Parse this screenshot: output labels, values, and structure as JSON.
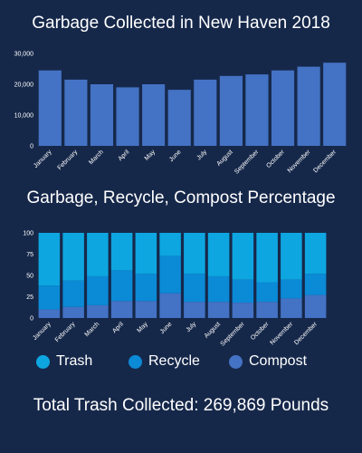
{
  "chart_data": [
    {
      "type": "bar",
      "title": "Garbage Collected in New Haven 2018",
      "categories": [
        "January",
        "February",
        "March",
        "April",
        "May",
        "June",
        "July",
        "August",
        "September",
        "October",
        "November",
        "December"
      ],
      "values": [
        24500,
        21500,
        20000,
        19000,
        20000,
        18200,
        21500,
        22700,
        23200,
        24500,
        25700,
        27000
      ],
      "ylim": [
        0,
        30000
      ],
      "yticks": [
        "0",
        "10,000",
        "20,000",
        "30,000"
      ],
      "color": "#4472c4",
      "grid": false
    },
    {
      "type": "bar",
      "stacked": true,
      "title": "Garbage, Recycle, Compost Percentage",
      "categories": [
        "January",
        "February",
        "March",
        "April",
        "May",
        "June",
        "July",
        "August",
        "September",
        "October",
        "November",
        "December"
      ],
      "ylim": [
        0,
        100
      ],
      "yticks": [
        "0",
        "25",
        "50",
        "75",
        "100"
      ],
      "series": [
        {
          "name": "Compost",
          "color": "#4472c4",
          "values": [
            10,
            13,
            15,
            20,
            20,
            29,
            19,
            19,
            18,
            19,
            23,
            27
          ]
        },
        {
          "name": "Recycle",
          "color": "#0b8ad6",
          "values": [
            28,
            31,
            34,
            36,
            32,
            44,
            33,
            30,
            27,
            23,
            22,
            25
          ]
        },
        {
          "name": "Trash",
          "color": "#0ea6e0",
          "values": [
            62,
            56,
            51,
            44,
            48,
            27,
            48,
            51,
            55,
            58,
            55,
            48
          ]
        }
      ]
    }
  ],
  "legend": [
    {
      "label": "Trash",
      "color": "#0ea6e0"
    },
    {
      "label": "Recycle",
      "color": "#0b8ad6"
    },
    {
      "label": "Compost",
      "color": "#4472c4"
    }
  ],
  "total_text": "Total Trash Collected: 269,869 Pounds"
}
